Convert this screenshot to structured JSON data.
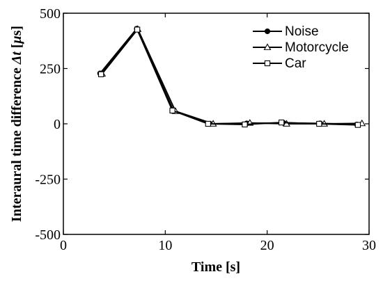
{
  "chart_data": {
    "type": "line",
    "xlabel": "Time [s]",
    "ylabel_main": "Interaural time difference ",
    "ylabel_symbol": "Δt",
    "ylabel_unit_open": " [",
    "ylabel_unit_mu": "μ",
    "ylabel_unit_rest": "s]",
    "xlim": [
      0,
      30
    ],
    "ylim": [
      -500,
      500
    ],
    "x_ticks": [
      0,
      10,
      20,
      30
    ],
    "x_tick_labels": [
      "0",
      "10",
      "20",
      "30"
    ],
    "y_ticks": [
      -500,
      -250,
      0,
      250,
      500
    ],
    "y_tick_labels": [
      "-500",
      "-250",
      "0",
      "250",
      "500"
    ],
    "grid": false,
    "legend_position": "top-right",
    "series": [
      {
        "name": "Noise",
        "marker": "filled-circle",
        "x": [
          3.6,
          7.2,
          10.8,
          14.4,
          18.0,
          21.6,
          25.2,
          28.8
        ],
        "y": [
          228,
          430,
          60,
          0,
          2,
          4,
          2,
          -3
        ]
      },
      {
        "name": "Motorcycle",
        "marker": "open-triangle",
        "x": [
          3.8,
          7.3,
          11.0,
          14.7,
          18.3,
          21.9,
          25.6,
          29.3
        ],
        "y": [
          226,
          428,
          57,
          0,
          4,
          0,
          0,
          2
        ]
      },
      {
        "name": "Car",
        "marker": "open-square",
        "x": [
          3.7,
          7.25,
          10.7,
          14.2,
          17.8,
          21.4,
          25.1,
          28.9
        ],
        "y": [
          224,
          426,
          60,
          0,
          -3,
          6,
          0,
          -5
        ]
      }
    ],
    "colors": {
      "line": "#000000",
      "background": "#ffffff"
    }
  }
}
